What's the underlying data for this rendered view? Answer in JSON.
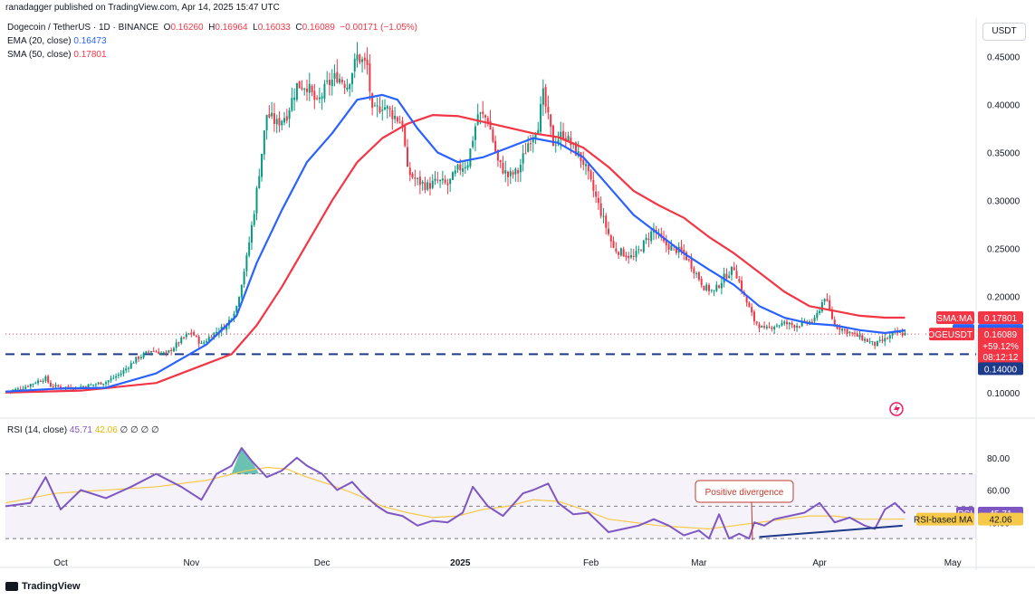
{
  "credit": "ranadagger published on TradingView.com, Apr 14, 2025 15:47 UTC",
  "header": {
    "symbol": "Dogecoin / TetherUS · 1D · BINANCE",
    "o_label": "O",
    "o": "0.16260",
    "h_label": "H",
    "h": "0.16964",
    "l_label": "L",
    "l": "0.16033",
    "c_label": "C",
    "c": "0.16089",
    "change": "−0.00171 (−1.05%)",
    "ema_label": "EMA (20, close)",
    "ema_value": "0.16473",
    "sma_label": "SMA (50, close)",
    "sma_value": "0.17801"
  },
  "currency_button": "USDT",
  "rsi_header": {
    "label": "RSI (14, close)",
    "rsi": "45.71",
    "ma": "42.06",
    "extra": "∅ ∅ ∅ ∅"
  },
  "annotation": "Positive divergence",
  "footer_logo": "TradingView",
  "price_tags": {
    "sma_label": "SMA:MA",
    "sma": "0.17801",
    "ema_label": "EMA",
    "ema": "0.16473",
    "sym_label": "DOGEUSDT",
    "price": "0.16089",
    "pct": "+59.12%",
    "countdown": "08:12:12",
    "support": "0.14000"
  },
  "rsi_tags": {
    "rsi_label": "RSI",
    "rsi": "45.71",
    "ma_label": "RSI-based MA",
    "ma": "42.06"
  },
  "colors": {
    "up": "#089981",
    "down": "#f23645",
    "ema": "#2962ff",
    "sma": "#f23645",
    "rsi": "#7e57c2",
    "rsi_ma": "#f7c948",
    "support": "#1e3a8a"
  },
  "chart_data": {
    "type": "candlestick",
    "symbol": "DOGEUSDT",
    "interval": "1D",
    "x_tick_labels": [
      "Oct",
      "Nov",
      "Dec",
      "2025",
      "Feb",
      "Mar",
      "Apr",
      "May"
    ],
    "y_tick_labels": [
      "0.10000",
      "0.15000",
      "0.20000",
      "0.25000",
      "0.30000",
      "0.35000",
      "0.40000",
      "0.45000"
    ],
    "ylim": [
      0.08,
      0.49
    ],
    "support_level": 0.14,
    "series": [
      {
        "name": "DOGEUSDT",
        "close_points": [
          [
            0,
            0.101
          ],
          [
            6,
            0.104
          ],
          [
            12,
            0.111
          ],
          [
            16,
            0.115
          ],
          [
            18,
            0.107
          ],
          [
            22,
            0.106
          ],
          [
            28,
            0.105
          ],
          [
            34,
            0.108
          ],
          [
            40,
            0.111
          ],
          [
            46,
            0.12
          ],
          [
            52,
            0.135
          ],
          [
            58,
            0.144
          ],
          [
            64,
            0.14
          ],
          [
            70,
            0.155
          ],
          [
            74,
            0.163
          ],
          [
            78,
            0.15
          ],
          [
            82,
            0.16
          ],
          [
            88,
            0.17
          ],
          [
            92,
            0.19
          ],
          [
            96,
            0.24
          ],
          [
            99,
            0.29
          ],
          [
            102,
            0.35
          ],
          [
            104,
            0.39
          ],
          [
            108,
            0.38
          ],
          [
            112,
            0.39
          ],
          [
            116,
            0.42
          ],
          [
            120,
            0.42
          ],
          [
            124,
            0.4
          ],
          [
            128,
            0.42
          ],
          [
            132,
            0.43
          ],
          [
            136,
            0.42
          ],
          [
            140,
            0.45
          ],
          [
            144,
            0.44
          ],
          [
            146,
            0.39
          ],
          [
            150,
            0.4
          ],
          [
            154,
            0.39
          ],
          [
            158,
            0.38
          ],
          [
            160,
            0.33
          ],
          [
            164,
            0.32
          ],
          [
            168,
            0.315
          ],
          [
            172,
            0.32
          ],
          [
            176,
            0.316
          ],
          [
            180,
            0.332
          ],
          [
            184,
            0.34
          ],
          [
            188,
            0.39
          ],
          [
            192,
            0.385
          ],
          [
            196,
            0.34
          ],
          [
            200,
            0.325
          ],
          [
            204,
            0.33
          ],
          [
            208,
            0.36
          ],
          [
            212,
            0.38
          ],
          [
            214,
            0.41
          ],
          [
            218,
            0.36
          ],
          [
            222,
            0.37
          ],
          [
            226,
            0.355
          ],
          [
            230,
            0.34
          ],
          [
            234,
            0.31
          ],
          [
            238,
            0.28
          ],
          [
            242,
            0.25
          ],
          [
            246,
            0.245
          ],
          [
            250,
            0.24
          ],
          [
            254,
            0.255
          ],
          [
            258,
            0.27
          ],
          [
            262,
            0.255
          ],
          [
            266,
            0.25
          ],
          [
            270,
            0.245
          ],
          [
            274,
            0.228
          ],
          [
            278,
            0.21
          ],
          [
            282,
            0.205
          ],
          [
            286,
            0.22
          ],
          [
            290,
            0.23
          ],
          [
            294,
            0.2
          ],
          [
            298,
            0.175
          ],
          [
            302,
            0.165
          ],
          [
            306,
            0.17
          ],
          [
            310,
            0.172
          ],
          [
            314,
            0.17
          ],
          [
            318,
            0.172
          ],
          [
            322,
            0.175
          ],
          [
            326,
            0.2
          ],
          [
            330,
            0.17
          ],
          [
            334,
            0.165
          ],
          [
            338,
            0.16
          ],
          [
            342,
            0.155
          ],
          [
            346,
            0.15
          ],
          [
            350,
            0.155
          ],
          [
            354,
            0.162
          ],
          [
            358,
            0.161
          ]
        ]
      },
      {
        "name": "EMA (20, close)",
        "points": [
          [
            0,
            0.101
          ],
          [
            20,
            0.104
          ],
          [
            40,
            0.105
          ],
          [
            60,
            0.12
          ],
          [
            80,
            0.15
          ],
          [
            92,
            0.18
          ],
          [
            100,
            0.235
          ],
          [
            110,
            0.29
          ],
          [
            120,
            0.34
          ],
          [
            130,
            0.37
          ],
          [
            140,
            0.405
          ],
          [
            150,
            0.41
          ],
          [
            156,
            0.405
          ],
          [
            164,
            0.375
          ],
          [
            172,
            0.35
          ],
          [
            180,
            0.34
          ],
          [
            190,
            0.345
          ],
          [
            200,
            0.355
          ],
          [
            210,
            0.365
          ],
          [
            220,
            0.36
          ],
          [
            230,
            0.345
          ],
          [
            240,
            0.315
          ],
          [
            250,
            0.285
          ],
          [
            260,
            0.265
          ],
          [
            270,
            0.245
          ],
          [
            280,
            0.228
          ],
          [
            290,
            0.212
          ],
          [
            300,
            0.19
          ],
          [
            310,
            0.178
          ],
          [
            320,
            0.172
          ],
          [
            330,
            0.17
          ],
          [
            340,
            0.165
          ],
          [
            350,
            0.162
          ],
          [
            358,
            0.1647
          ]
        ]
      },
      {
        "name": "SMA (50, close)",
        "points": [
          [
            0,
            0.1
          ],
          [
            30,
            0.102
          ],
          [
            60,
            0.11
          ],
          [
            80,
            0.13
          ],
          [
            90,
            0.14
          ],
          [
            100,
            0.17
          ],
          [
            110,
            0.21
          ],
          [
            120,
            0.255
          ],
          [
            130,
            0.3
          ],
          [
            140,
            0.34
          ],
          [
            150,
            0.365
          ],
          [
            160,
            0.38
          ],
          [
            170,
            0.389
          ],
          [
            180,
            0.388
          ],
          [
            190,
            0.382
          ],
          [
            200,
            0.376
          ],
          [
            210,
            0.37
          ],
          [
            220,
            0.366
          ],
          [
            230,
            0.355
          ],
          [
            240,
            0.335
          ],
          [
            250,
            0.31
          ],
          [
            260,
            0.295
          ],
          [
            270,
            0.282
          ],
          [
            280,
            0.262
          ],
          [
            290,
            0.245
          ],
          [
            300,
            0.225
          ],
          [
            310,
            0.205
          ],
          [
            320,
            0.19
          ],
          [
            330,
            0.185
          ],
          [
            340,
            0.18
          ],
          [
            350,
            0.178
          ],
          [
            358,
            0.178
          ]
        ]
      }
    ],
    "rsi": {
      "name": "RSI (14, close)",
      "ylim": [
        20,
        100
      ],
      "levels": [
        70,
        50,
        30
      ],
      "y_tick_labels": [
        "40.00",
        "60.00",
        "80.00"
      ],
      "points": [
        [
          0,
          50
        ],
        [
          10,
          52
        ],
        [
          16,
          68
        ],
        [
          22,
          48
        ],
        [
          30,
          60
        ],
        [
          40,
          55
        ],
        [
          50,
          62
        ],
        [
          60,
          70
        ],
        [
          70,
          62
        ],
        [
          78,
          54
        ],
        [
          84,
          70
        ],
        [
          90,
          75
        ],
        [
          94,
          86
        ],
        [
          98,
          78
        ],
        [
          104,
          68
        ],
        [
          110,
          72
        ],
        [
          116,
          80
        ],
        [
          120,
          75
        ],
        [
          126,
          70
        ],
        [
          132,
          60
        ],
        [
          138,
          65
        ],
        [
          142,
          58
        ],
        [
          148,
          50
        ],
        [
          152,
          46
        ],
        [
          158,
          44
        ],
        [
          164,
          38
        ],
        [
          170,
          41
        ],
        [
          176,
          40
        ],
        [
          182,
          46
        ],
        [
          186,
          62
        ],
        [
          192,
          50
        ],
        [
          198,
          44
        ],
        [
          206,
          58
        ],
        [
          210,
          60
        ],
        [
          216,
          64
        ],
        [
          220,
          52
        ],
        [
          226,
          45
        ],
        [
          232,
          46
        ],
        [
          240,
          34
        ],
        [
          246,
          36
        ],
        [
          252,
          38
        ],
        [
          258,
          42
        ],
        [
          264,
          38
        ],
        [
          270,
          32
        ],
        [
          276,
          35
        ],
        [
          280,
          30
        ],
        [
          284,
          45
        ],
        [
          288,
          30
        ],
        [
          292,
          33
        ],
        [
          296,
          30
        ],
        [
          298,
          40
        ],
        [
          302,
          38
        ],
        [
          306,
          42
        ],
        [
          312,
          44
        ],
        [
          318,
          46
        ],
        [
          324,
          52
        ],
        [
          330,
          40
        ],
        [
          336,
          43
        ],
        [
          342,
          38
        ],
        [
          346,
          36
        ],
        [
          350,
          48
        ],
        [
          354,
          52
        ],
        [
          358,
          45.7
        ]
      ],
      "ma_points": [
        [
          0,
          52
        ],
        [
          20,
          58
        ],
        [
          40,
          60
        ],
        [
          60,
          62
        ],
        [
          80,
          66
        ],
        [
          96,
          72
        ],
        [
          104,
          74
        ],
        [
          112,
          73
        ],
        [
          120,
          68
        ],
        [
          130,
          63
        ],
        [
          140,
          57
        ],
        [
          150,
          50
        ],
        [
          160,
          46
        ],
        [
          170,
          43
        ],
        [
          180,
          44
        ],
        [
          190,
          48
        ],
        [
          200,
          50
        ],
        [
          210,
          54
        ],
        [
          220,
          53
        ],
        [
          230,
          48
        ],
        [
          240,
          42
        ],
        [
          250,
          40
        ],
        [
          260,
          38
        ],
        [
          270,
          37
        ],
        [
          280,
          36
        ],
        [
          290,
          38
        ],
        [
          300,
          40
        ],
        [
          310,
          42
        ],
        [
          320,
          44
        ],
        [
          330,
          44
        ],
        [
          340,
          42
        ],
        [
          350,
          42
        ],
        [
          358,
          42.06
        ]
      ],
      "divergence_line": [
        [
          300,
          31
        ],
        [
          357,
          38
        ]
      ]
    }
  }
}
